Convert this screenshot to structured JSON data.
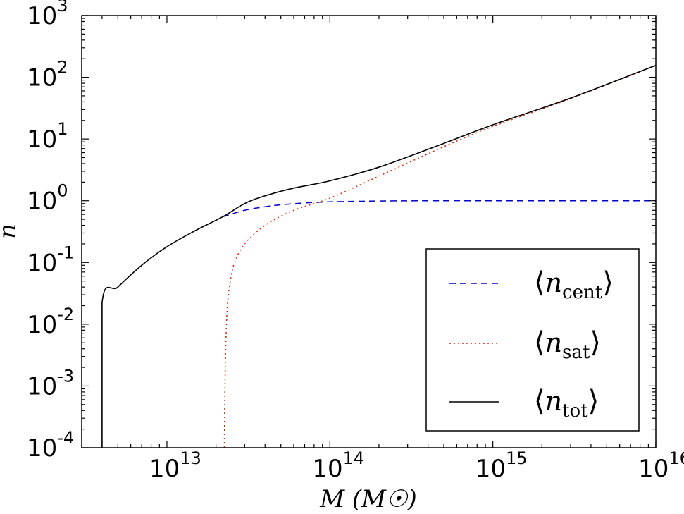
{
  "chart_data": {
    "type": "line",
    "xscale": "log",
    "yscale": "log",
    "xlim": [
      3000000000000.0,
      1e+16
    ],
    "ylim": [
      0.0001,
      1000
    ],
    "xlabel": "M (M☉)",
    "ylabel": "n",
    "x_ticks": [
      {
        "value": 10000000000000.0,
        "base": "10",
        "exp": "13"
      },
      {
        "value": 100000000000000.0,
        "base": "10",
        "exp": "14"
      },
      {
        "value": 1000000000000000.0,
        "base": "10",
        "exp": "15"
      },
      {
        "value": 1e+16,
        "base": "10",
        "exp": "16"
      }
    ],
    "y_ticks": [
      {
        "value": 0.0001,
        "base": "10",
        "exp": "-4"
      },
      {
        "value": 0.001,
        "base": "10",
        "exp": "-3"
      },
      {
        "value": 0.01,
        "base": "10",
        "exp": "-2"
      },
      {
        "value": 0.1,
        "base": "10",
        "exp": "-1"
      },
      {
        "value": 1,
        "base": "10",
        "exp": "0"
      },
      {
        "value": 10,
        "base": "10",
        "exp": "1"
      },
      {
        "value": 100,
        "base": "10",
        "exp": "2"
      },
      {
        "value": 1000,
        "base": "10",
        "exp": "3"
      }
    ],
    "grid": false,
    "legend_position": "bottom-right",
    "series": [
      {
        "name": "n_cent",
        "legend_main": "n",
        "legend_sub": "cent",
        "color": "#0000cc",
        "style": "dashed",
        "x": [
          22000000000000.0,
          30000000000000.0,
          40000000000000.0,
          50000000000000.0,
          70000000000000.0,
          100000000000000.0,
          200000000000000.0,
          500000000000000.0,
          1000000000000000.0,
          1e+16
        ],
        "y": [
          0.55,
          0.7,
          0.8,
          0.86,
          0.92,
          0.96,
          0.99,
          1.0,
          1.0,
          1.0
        ]
      },
      {
        "name": "n_sat",
        "legend_main": "n",
        "legend_sub": "sat",
        "color": "#dd2200",
        "style": "dotted",
        "x": [
          22500000000000.0,
          22700000000000.0,
          23000000000000.0,
          23500000000000.0,
          24500000000000.0,
          26000000000000.0,
          30000000000000.0,
          40000000000000.0,
          60000000000000.0,
          100000000000000.0,
          200000000000000.0,
          500000000000000.0,
          1000000000000000.0,
          3000000000000000.0,
          1e+16
        ],
        "y": [
          0.0001,
          0.001,
          0.005,
          0.02,
          0.05,
          0.1,
          0.2,
          0.4,
          0.7,
          1.1,
          2.5,
          7.5,
          16,
          45,
          155
        ]
      },
      {
        "name": "n_tot",
        "legend_main": "n",
        "legend_sub": "tot",
        "color": "#000000",
        "style": "solid",
        "x": [
          4000000000000.0,
          4000000000000.0,
          5000000000000.0,
          7000000000000.0,
          10000000000000.0,
          15000000000000.0,
          22000000000000.0,
          30000000000000.0,
          40000000000000.0,
          60000000000000.0,
          100000000000000.0,
          200000000000000.0,
          500000000000000.0,
          1000000000000000.0,
          3000000000000000.0,
          1e+16
        ],
        "y": [
          0.0001,
          0.022,
          0.04,
          0.09,
          0.18,
          0.33,
          0.55,
          0.9,
          1.2,
          1.6,
          2.1,
          3.5,
          8.5,
          17,
          46,
          156
        ]
      }
    ]
  }
}
